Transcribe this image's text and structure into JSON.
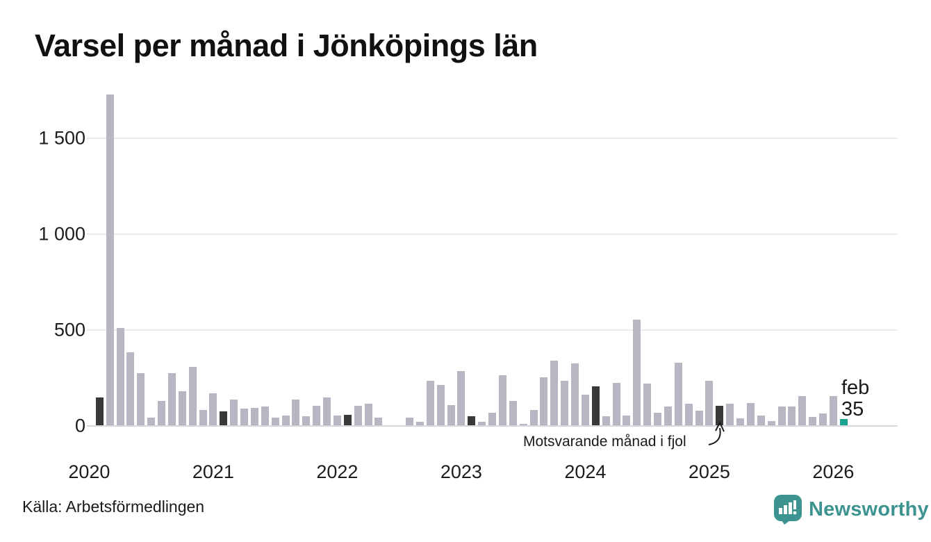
{
  "title": "Varsel per månad i Jönköpings län",
  "source": "Källa: Arbetsförmedlingen",
  "branding": {
    "name": "Newsworthy"
  },
  "annotation": {
    "text": "Motsvarande månad i fjol",
    "points_to": "feb 2025 (dark bar)"
  },
  "current_point_label": {
    "month": "feb",
    "value": "35"
  },
  "colors": {
    "bar_default": "#b9b5c3",
    "bar_highlight_dark": "#393939",
    "bar_current_teal": "#1aa38d",
    "gridline": "#eaeaef",
    "axis_line": "#d8d7df",
    "text": "#1a1a1a",
    "brand_teal": "#3c9390"
  },
  "chart_data": {
    "type": "bar",
    "title": "Varsel per månad i Jönköpings län",
    "xlabel": "",
    "ylabel": "",
    "start_month": "2020-02",
    "end_month": "2026-02",
    "ylim": [
      0,
      1750
    ],
    "grid": "horizontal",
    "ytick_values": [
      0,
      500,
      1000,
      1500
    ],
    "ytick_labels": [
      "0",
      "500",
      "1 000",
      "1 500"
    ],
    "xtick_labels": [
      "2020",
      "2021",
      "2022",
      "2023",
      "2024",
      "2025",
      "2026"
    ],
    "highlight_rule": "February of every year shown dark; latest month (feb 2026) teal with value label",
    "values": [
      150,
      1730,
      510,
      385,
      275,
      45,
      130,
      275,
      180,
      310,
      82,
      170,
      77,
      138,
      91,
      94,
      100,
      43,
      55,
      137,
      50,
      105,
      150,
      55,
      58,
      105,
      115,
      45,
      0,
      0,
      45,
      20,
      235,
      215,
      110,
      285,
      52,
      20,
      70,
      265,
      130,
      10,
      85,
      255,
      340,
      235,
      325,
      165,
      205,
      50,
      225,
      55,
      555,
      220,
      70,
      100,
      330,
      115,
      78,
      235,
      105,
      115,
      40,
      120,
      53,
      27,
      100,
      100,
      155,
      48,
      65,
      155,
      35
    ]
  }
}
